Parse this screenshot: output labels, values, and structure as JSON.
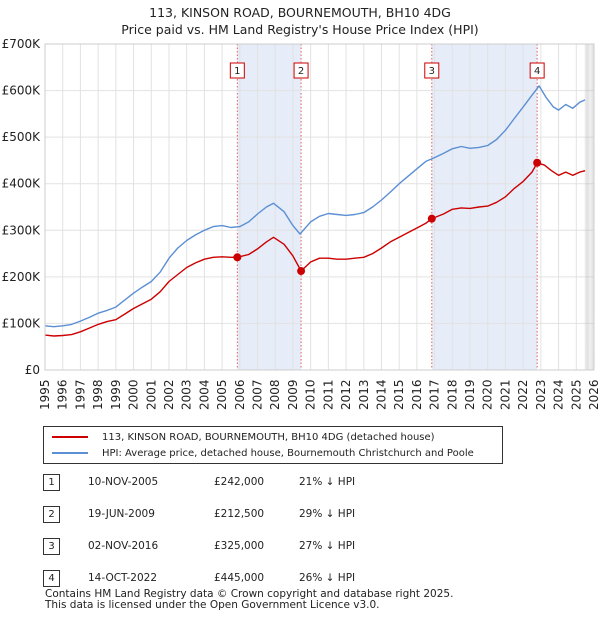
{
  "title_line1": "113, KINSON ROAD, BOURNEMOUTH, BH10 4DG",
  "title_line2": "Price paid vs. HM Land Registry's House Price Index (HPI)",
  "chart_data": {
    "type": "line",
    "xlim": [
      1995,
      2026
    ],
    "ylim": [
      0,
      700000
    ],
    "y_ticks": [
      0,
      100000,
      200000,
      300000,
      400000,
      500000,
      600000,
      700000
    ],
    "y_tick_labels": [
      "£0",
      "£100K",
      "£200K",
      "£300K",
      "£400K",
      "£500K",
      "£600K",
      "£700K"
    ],
    "x_ticks": [
      1995,
      1996,
      1997,
      1998,
      1999,
      2000,
      2001,
      2002,
      2003,
      2004,
      2005,
      2006,
      2007,
      2008,
      2009,
      2010,
      2011,
      2012,
      2013,
      2014,
      2015,
      2016,
      2017,
      2018,
      2019,
      2020,
      2021,
      2022,
      2023,
      2024,
      2025,
      2026
    ],
    "shaded_ranges": [
      [
        2005.86,
        2009.46
      ],
      [
        2016.84,
        2022.79
      ]
    ],
    "series": [
      {
        "name": "113, KINSON ROAD, BOURNEMOUTH, BH10 4DG (detached house)",
        "color": "#cc0000",
        "x": [
          1995.0,
          1995.5,
          1996.0,
          1996.5,
          1997.0,
          1997.5,
          1998.0,
          1998.5,
          1999.0,
          1999.5,
          2000.0,
          2000.5,
          2001.0,
          2001.5,
          2002.0,
          2002.5,
          2003.0,
          2003.5,
          2004.0,
          2004.5,
          2005.0,
          2005.5,
          2005.86,
          2006.5,
          2007.0,
          2007.5,
          2007.9,
          2008.5,
          2009.0,
          2009.46,
          2010.0,
          2010.5,
          2011.0,
          2011.5,
          2012.0,
          2012.5,
          2013.0,
          2013.5,
          2014.0,
          2014.5,
          2015.0,
          2015.5,
          2016.0,
          2016.5,
          2016.84,
          2017.5,
          2018.0,
          2018.5,
          2019.0,
          2019.5,
          2020.0,
          2020.5,
          2021.0,
          2021.5,
          2022.0,
          2022.5,
          2022.79,
          2023.2,
          2023.6,
          2024.0,
          2024.4,
          2024.8,
          2025.2,
          2025.5
        ],
        "y": [
          75000,
          73000,
          74000,
          76000,
          82000,
          90000,
          98000,
          104000,
          108000,
          120000,
          132000,
          142000,
          152000,
          168000,
          190000,
          205000,
          220000,
          230000,
          238000,
          242000,
          243000,
          242000,
          242000,
          248000,
          260000,
          275000,
          285000,
          270000,
          245000,
          212500,
          232000,
          240000,
          240000,
          238000,
          238000,
          240000,
          242000,
          250000,
          262000,
          275000,
          285000,
          295000,
          305000,
          315000,
          325000,
          335000,
          345000,
          348000,
          347000,
          350000,
          352000,
          360000,
          372000,
          390000,
          405000,
          425000,
          445000,
          440000,
          428000,
          418000,
          425000,
          418000,
          425000,
          428000
        ]
      },
      {
        "name": "HPI: Average price, detached house, Bournemouth Christchurch and Poole",
        "color": "#5b8fd4",
        "x": [
          1995.0,
          1995.5,
          1996.0,
          1996.5,
          1997.0,
          1997.5,
          1998.0,
          1998.5,
          1999.0,
          1999.5,
          2000.0,
          2000.5,
          2001.0,
          2001.5,
          2002.0,
          2002.5,
          2003.0,
          2003.5,
          2004.0,
          2004.5,
          2005.0,
          2005.5,
          2006.0,
          2006.5,
          2007.0,
          2007.5,
          2007.9,
          2008.5,
          2009.0,
          2009.4,
          2010.0,
          2010.5,
          2011.0,
          2011.5,
          2012.0,
          2012.5,
          2013.0,
          2013.5,
          2014.0,
          2014.5,
          2015.0,
          2015.5,
          2016.0,
          2016.5,
          2017.0,
          2017.5,
          2018.0,
          2018.5,
          2019.0,
          2019.5,
          2020.0,
          2020.5,
          2021.0,
          2021.5,
          2022.0,
          2022.5,
          2022.9,
          2023.3,
          2023.7,
          2024.0,
          2024.4,
          2024.8,
          2025.2,
          2025.5
        ],
        "y": [
          95000,
          93000,
          95000,
          98000,
          105000,
          113000,
          122000,
          128000,
          135000,
          150000,
          165000,
          178000,
          190000,
          210000,
          240000,
          262000,
          278000,
          290000,
          300000,
          308000,
          310000,
          306000,
          308000,
          318000,
          335000,
          350000,
          358000,
          340000,
          310000,
          292000,
          318000,
          330000,
          336000,
          334000,
          332000,
          334000,
          338000,
          350000,
          365000,
          382000,
          400000,
          416000,
          432000,
          448000,
          456000,
          465000,
          475000,
          480000,
          476000,
          478000,
          482000,
          495000,
          515000,
          540000,
          565000,
          590000,
          610000,
          585000,
          565000,
          558000,
          570000,
          562000,
          575000,
          580000
        ]
      }
    ],
    "markers": [
      {
        "label": "1",
        "x": 2005.86,
        "y": 242000
      },
      {
        "label": "2",
        "x": 2009.46,
        "y": 212500
      },
      {
        "label": "3",
        "x": 2016.84,
        "y": 325000
      },
      {
        "label": "4",
        "x": 2022.79,
        "y": 445000
      }
    ]
  },
  "legend": {
    "property_label": "113, KINSON ROAD, BOURNEMOUTH, BH10 4DG (detached house)",
    "hpi_label": "HPI: Average price, detached house, Bournemouth Christchurch and Poole"
  },
  "sales": [
    {
      "num": "1",
      "date": "10-NOV-2005",
      "price": "£242,000",
      "hpi": "21% ↓ HPI"
    },
    {
      "num": "2",
      "date": "19-JUN-2009",
      "price": "£212,500",
      "hpi": "29% ↓ HPI"
    },
    {
      "num": "3",
      "date": "02-NOV-2016",
      "price": "£325,000",
      "hpi": "27% ↓ HPI"
    },
    {
      "num": "4",
      "date": "14-OCT-2022",
      "price": "£445,000",
      "hpi": "26% ↓ HPI"
    }
  ],
  "footer_line1": "Contains HM Land Registry data © Crown copyright and database right 2025.",
  "footer_line2": "This data is licensed under the Open Government Licence v3.0."
}
